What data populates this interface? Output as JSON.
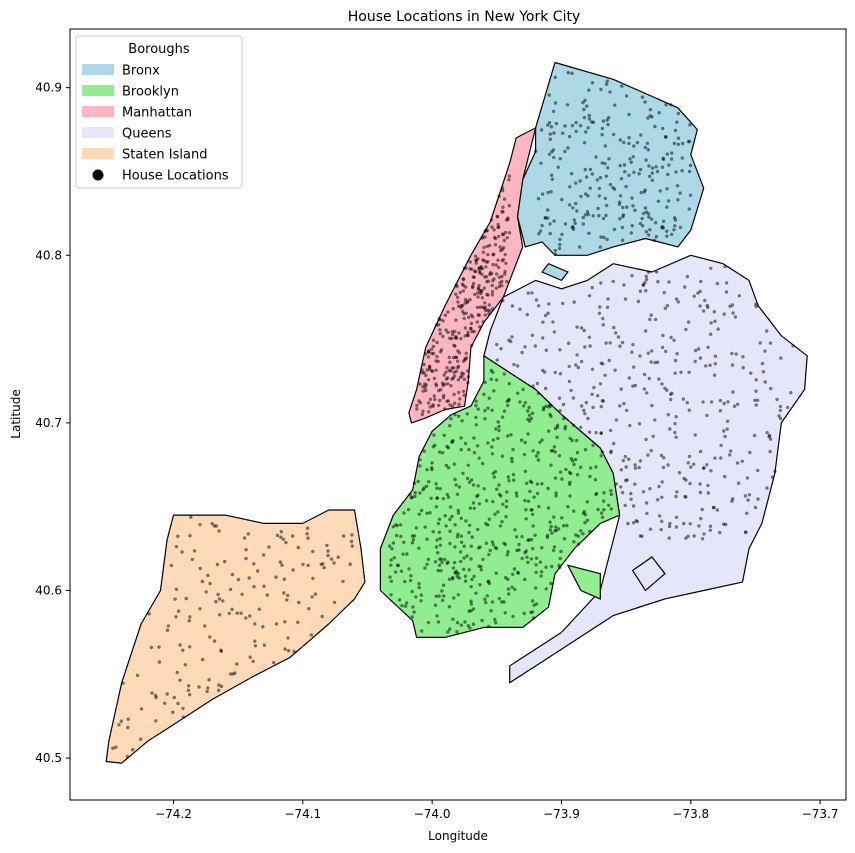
{
  "chart_data": {
    "type": "scatter",
    "title": "House Locations in New York City",
    "xlabel": "Longitude",
    "ylabel": "Latitude",
    "xlim": [
      -74.28,
      -73.68
    ],
    "ylim": [
      40.475,
      40.935
    ],
    "x_ticks": [
      -74.2,
      -74.1,
      -74.0,
      -73.9,
      -73.8,
      -73.7
    ],
    "x_tick_labels": [
      "−74.2",
      "−74.1",
      "−74.0",
      "−73.9",
      "−73.8",
      "−73.7"
    ],
    "y_ticks": [
      40.5,
      40.6,
      40.7,
      40.8,
      40.9
    ],
    "y_tick_labels": [
      "40.5",
      "40.6",
      "40.7",
      "40.8",
      "40.9"
    ],
    "grid": false,
    "legend_position": "top-left",
    "legend_title": "Boroughs",
    "boroughs": [
      {
        "name": "Bronx",
        "color": "#add8e6",
        "outline": [
          [
            -73.92,
            40.876
          ],
          [
            -73.905,
            40.915
          ],
          [
            -73.86,
            40.905
          ],
          [
            -73.81,
            40.888
          ],
          [
            -73.795,
            40.875
          ],
          [
            -73.8,
            40.86
          ],
          [
            -73.79,
            40.84
          ],
          [
            -73.8,
            40.815
          ],
          [
            -73.81,
            40.805
          ],
          [
            -73.835,
            40.81
          ],
          [
            -73.86,
            40.805
          ],
          [
            -73.88,
            40.8
          ],
          [
            -73.905,
            40.8
          ],
          [
            -73.915,
            40.808
          ],
          [
            -73.928,
            40.805
          ],
          [
            -73.934,
            40.823
          ],
          [
            -73.93,
            40.845
          ],
          [
            -73.92,
            40.862
          ]
        ]
      },
      {
        "name": "Manhattan",
        "color": "#ffb6c1",
        "outline": [
          [
            -73.92,
            40.876
          ],
          [
            -73.935,
            40.87
          ],
          [
            -73.94,
            40.855
          ],
          [
            -73.955,
            40.82
          ],
          [
            -73.97,
            40.8
          ],
          [
            -73.99,
            40.77
          ],
          [
            -74.005,
            40.745
          ],
          [
            -74.012,
            40.72
          ],
          [
            -74.018,
            40.706
          ],
          [
            -74.016,
            40.7
          ],
          [
            -74.005,
            40.703
          ],
          [
            -73.99,
            40.708
          ],
          [
            -73.975,
            40.71
          ],
          [
            -73.972,
            40.725
          ],
          [
            -73.97,
            40.745
          ],
          [
            -73.96,
            40.76
          ],
          [
            -73.945,
            40.775
          ],
          [
            -73.935,
            40.795
          ],
          [
            -73.93,
            40.805
          ],
          [
            -73.934,
            40.823
          ],
          [
            -73.93,
            40.845
          ]
        ]
      },
      {
        "name": "Brooklyn",
        "color": "#90ee90",
        "outline": [
          [
            -73.96,
            40.74
          ],
          [
            -73.94,
            40.73
          ],
          [
            -73.92,
            40.72
          ],
          [
            -73.9,
            40.705
          ],
          [
            -73.87,
            40.685
          ],
          [
            -73.86,
            40.67
          ],
          [
            -73.855,
            40.645
          ],
          [
            -73.87,
            40.64
          ],
          [
            -73.89,
            40.625
          ],
          [
            -73.905,
            40.61
          ],
          [
            -73.91,
            40.59
          ],
          [
            -73.93,
            40.578
          ],
          [
            -73.96,
            40.578
          ],
          [
            -73.99,
            40.572
          ],
          [
            -74.012,
            40.572
          ],
          [
            -74.015,
            40.582
          ],
          [
            -74.04,
            40.6
          ],
          [
            -74.04,
            40.625
          ],
          [
            -74.03,
            40.645
          ],
          [
            -74.015,
            40.66
          ],
          [
            -74.01,
            40.68
          ],
          [
            -74.0,
            40.695
          ],
          [
            -73.985,
            40.705
          ],
          [
            -73.97,
            40.71
          ],
          [
            -73.96,
            40.725
          ]
        ]
      },
      {
        "name": "Queens",
        "color": "#e6e6fa",
        "outline": [
          [
            -73.96,
            40.74
          ],
          [
            -73.955,
            40.755
          ],
          [
            -73.945,
            40.775
          ],
          [
            -73.92,
            40.785
          ],
          [
            -73.9,
            40.78
          ],
          [
            -73.88,
            40.785
          ],
          [
            -73.86,
            40.795
          ],
          [
            -73.83,
            40.79
          ],
          [
            -73.8,
            40.8
          ],
          [
            -73.775,
            40.795
          ],
          [
            -73.755,
            40.785
          ],
          [
            -73.748,
            40.77
          ],
          [
            -73.73,
            40.752
          ],
          [
            -73.71,
            40.74
          ],
          [
            -73.712,
            40.72
          ],
          [
            -73.73,
            40.7
          ],
          [
            -73.735,
            40.67
          ],
          [
            -73.745,
            40.64
          ],
          [
            -73.755,
            40.625
          ],
          [
            -73.76,
            40.605
          ],
          [
            -73.79,
            40.6
          ],
          [
            -73.82,
            40.595
          ],
          [
            -73.86,
            40.585
          ],
          [
            -73.9,
            40.565
          ],
          [
            -73.94,
            40.545
          ],
          [
            -73.94,
            40.555
          ],
          [
            -73.9,
            40.575
          ],
          [
            -73.87,
            40.6
          ],
          [
            -73.855,
            40.645
          ],
          [
            -73.86,
            40.67
          ],
          [
            -73.87,
            40.685
          ],
          [
            -73.9,
            40.705
          ],
          [
            -73.92,
            40.72
          ],
          [
            -73.94,
            40.73
          ]
        ]
      },
      {
        "name": "Staten Island",
        "color": "#ffdab9",
        "outline": [
          [
            -74.06,
            40.648
          ],
          [
            -74.08,
            40.648
          ],
          [
            -74.1,
            40.64
          ],
          [
            -74.13,
            40.64
          ],
          [
            -74.16,
            40.645
          ],
          [
            -74.2,
            40.645
          ],
          [
            -74.205,
            40.63
          ],
          [
            -74.21,
            40.6
          ],
          [
            -74.225,
            40.58
          ],
          [
            -74.24,
            40.545
          ],
          [
            -74.25,
            40.51
          ],
          [
            -74.252,
            40.498
          ],
          [
            -74.24,
            40.497
          ],
          [
            -74.22,
            40.51
          ],
          [
            -74.2,
            40.52
          ],
          [
            -74.17,
            40.535
          ],
          [
            -74.14,
            40.548
          ],
          [
            -74.11,
            40.56
          ],
          [
            -74.08,
            40.58
          ],
          [
            -74.06,
            40.595
          ],
          [
            -74.052,
            40.605
          ],
          [
            -74.055,
            40.625
          ]
        ]
      }
    ],
    "islands": [
      {
        "borough": "Queens",
        "outline": [
          [
            -73.83,
            40.62
          ],
          [
            -73.82,
            40.61
          ],
          [
            -73.835,
            40.6
          ],
          [
            -73.845,
            40.612
          ]
        ]
      },
      {
        "borough": "Brooklyn",
        "outline": [
          [
            -73.895,
            40.615
          ],
          [
            -73.885,
            40.6
          ],
          [
            -73.87,
            40.595
          ],
          [
            -73.87,
            40.61
          ]
        ]
      },
      {
        "borough": "Bronx",
        "outline": [
          [
            -73.91,
            40.795
          ],
          [
            -73.895,
            40.79
          ],
          [
            -73.9,
            40.785
          ],
          [
            -73.915,
            40.79
          ]
        ]
      }
    ],
    "legend": [
      {
        "label": "Bronx",
        "kind": "patch",
        "color": "#add8e6"
      },
      {
        "label": "Brooklyn",
        "kind": "patch",
        "color": "#90ee90"
      },
      {
        "label": "Manhattan",
        "kind": "patch",
        "color": "#ffb6c1"
      },
      {
        "label": "Queens",
        "kind": "patch",
        "color": "#e6e6fa"
      },
      {
        "label": "Staten Island",
        "kind": "patch",
        "color": "#ffdab9"
      },
      {
        "label": "House Locations",
        "kind": "marker",
        "color": "#000000"
      }
    ],
    "house_clusters": [
      {
        "borough": "Manhattan",
        "lon": [
          -74.012,
          -73.94
        ],
        "lat": [
          40.705,
          40.87
        ],
        "count": 320
      },
      {
        "borough": "Bronx",
        "lon": [
          -73.92,
          -73.8
        ],
        "lat": [
          40.8,
          40.91
        ],
        "count": 260
      },
      {
        "borough": "Brooklyn",
        "lon": [
          -74.04,
          -73.86
        ],
        "lat": [
          40.575,
          40.735
        ],
        "count": 520
      },
      {
        "borough": "Queens",
        "lon": [
          -73.95,
          -73.72
        ],
        "lat": [
          40.63,
          40.795
        ],
        "count": 380
      },
      {
        "borough": "Staten Island",
        "lon": [
          -74.25,
          -74.06
        ],
        "lat": [
          40.5,
          40.645
        ],
        "count": 170
      }
    ],
    "marker_color": "#000000",
    "marker_opacity": 0.5
  }
}
